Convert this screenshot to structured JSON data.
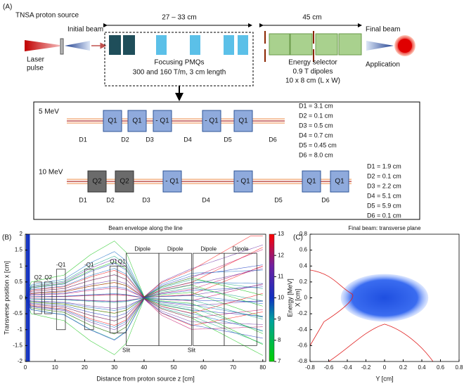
{
  "panel_a": {
    "label": "(A)",
    "source": "TNSA proton source",
    "initial_beam": "Initial beam",
    "laser": [
      "Laser",
      "pulse"
    ],
    "span_pmq": "27 – 33 cm",
    "pmq": [
      "Focusing PMQs",
      "300 and 160 T/m, 3 cm length"
    ],
    "span_selector": "45 cm",
    "selector": [
      "Energy selector",
      "0.9 T dipoles",
      "10 x 8 cm (L x W)"
    ],
    "final_beam": "Final beam",
    "application": "Application",
    "rows": [
      {
        "energy": "5 MeV",
        "quads": [
          "Q1",
          "Q1",
          "- Q1",
          "- Q1",
          "Q1"
        ],
        "gaps": [
          "D1",
          "D2",
          "D3",
          "D4",
          "D5",
          "D6"
        ],
        "distances": [
          "D1 = 3.1 cm",
          "D2 = 0.1 cm",
          "D3 = 0.5 cm",
          "D4 = 0.7 cm",
          "D5 = 0.45 cm",
          "D6 = 8.0 cm"
        ]
      },
      {
        "energy": "10 MeV",
        "quads": [
          "Q2",
          "Q2",
          "- Q1",
          "- Q1",
          "Q1",
          "Q1"
        ],
        "gaps": [
          "D1",
          "D2",
          "D3",
          "D4",
          "D5",
          "D6"
        ],
        "distances": [
          "D1 = 1.9 cm",
          "D2 = 0.1 cm",
          "D3 = 2.2 cm",
          "D4 = 5.1 cm",
          "D5 = 5.9 cm",
          "D6 = 0.1 cm"
        ]
      }
    ]
  },
  "chart_data": [
    {
      "type": "line",
      "panel": "(B)",
      "title": "Beam envelope along the line",
      "xlabel": "Distance from proton source z [cm]",
      "ylabel": "Transverse position x [cm]",
      "xlim": [
        0,
        81
      ],
      "ylim": [
        -2,
        2
      ],
      "xticks": [
        0,
        10,
        20,
        30,
        40,
        50,
        60,
        70,
        80
      ],
      "yticks": [
        -2,
        -1.5,
        -1,
        -0.5,
        0,
        0.5,
        1,
        1.5,
        2
      ],
      "colorbar": {
        "label": "Energy [MeV]",
        "lim": [
          7,
          13
        ],
        "ticks": [
          7,
          8,
          9,
          10,
          11,
          12,
          13
        ]
      },
      "elements": [
        "Q2",
        "Q2",
        "-Q1",
        "-Q1",
        "Q1",
        "Q1",
        "Dipole",
        "Dipole",
        "Dipole",
        "Dipole",
        "Slit",
        "Slit"
      ]
    },
    {
      "type": "scatter",
      "panel": "(C)",
      "title": "Final beam: transverse plane",
      "xlabel": "Y [cm]",
      "ylabel": "X [cm]",
      "xlim": [
        -0.8,
        0.8
      ],
      "ylim": [
        -0.8,
        0.8
      ],
      "xticks": [
        -0.8,
        -0.6,
        -0.4,
        -0.2,
        0,
        0.2,
        0.4,
        0.6,
        0.8
      ],
      "yticks": [
        -0.8,
        -0.6,
        -0.4,
        -0.2,
        0,
        0.2,
        0.4,
        0.6,
        0.8
      ],
      "color": "#1f4fe0"
    }
  ]
}
